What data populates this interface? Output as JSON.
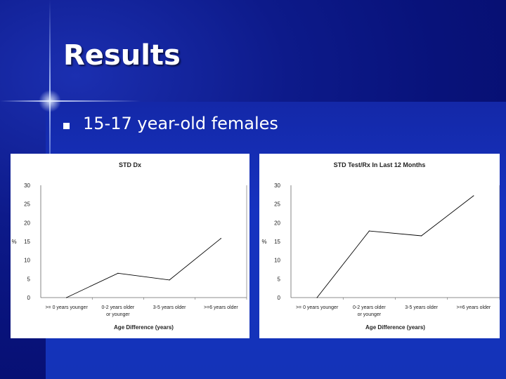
{
  "slide": {
    "title": "Results",
    "bullet": "15-17 year-old females"
  },
  "colors": {
    "background": "#0a1580",
    "title": "#ffffff",
    "line": "#000000"
  },
  "chart_data": [
    {
      "type": "line",
      "title": "STD Dx",
      "xlabel": "Age Difference (years)",
      "ylabel": "%",
      "categories": [
        ">= 0 years younger",
        "0-2 years older or younger",
        "3-5 years older",
        ">=6 years older"
      ],
      "values": [
        0,
        6.5,
        4.7,
        15.8
      ],
      "yticks": [
        "0",
        "5",
        "10",
        "15",
        "20",
        "25",
        "30"
      ],
      "ylim": [
        0,
        30
      ],
      "grid": false
    },
    {
      "type": "line",
      "title": "STD Test/Rx In Last 12 Months",
      "xlabel": "Age Difference (years)",
      "ylabel": "%",
      "categories": [
        ">= 0 years younger",
        "0-2 years older or younger",
        "3-5 years older",
        ">=6 years older"
      ],
      "values": [
        0,
        17.8,
        16.5,
        27.2
      ],
      "yticks": [
        "0",
        "5",
        "10",
        "15",
        "20",
        "25",
        "30"
      ],
      "ylim": [
        0,
        30
      ],
      "grid": false
    }
  ]
}
